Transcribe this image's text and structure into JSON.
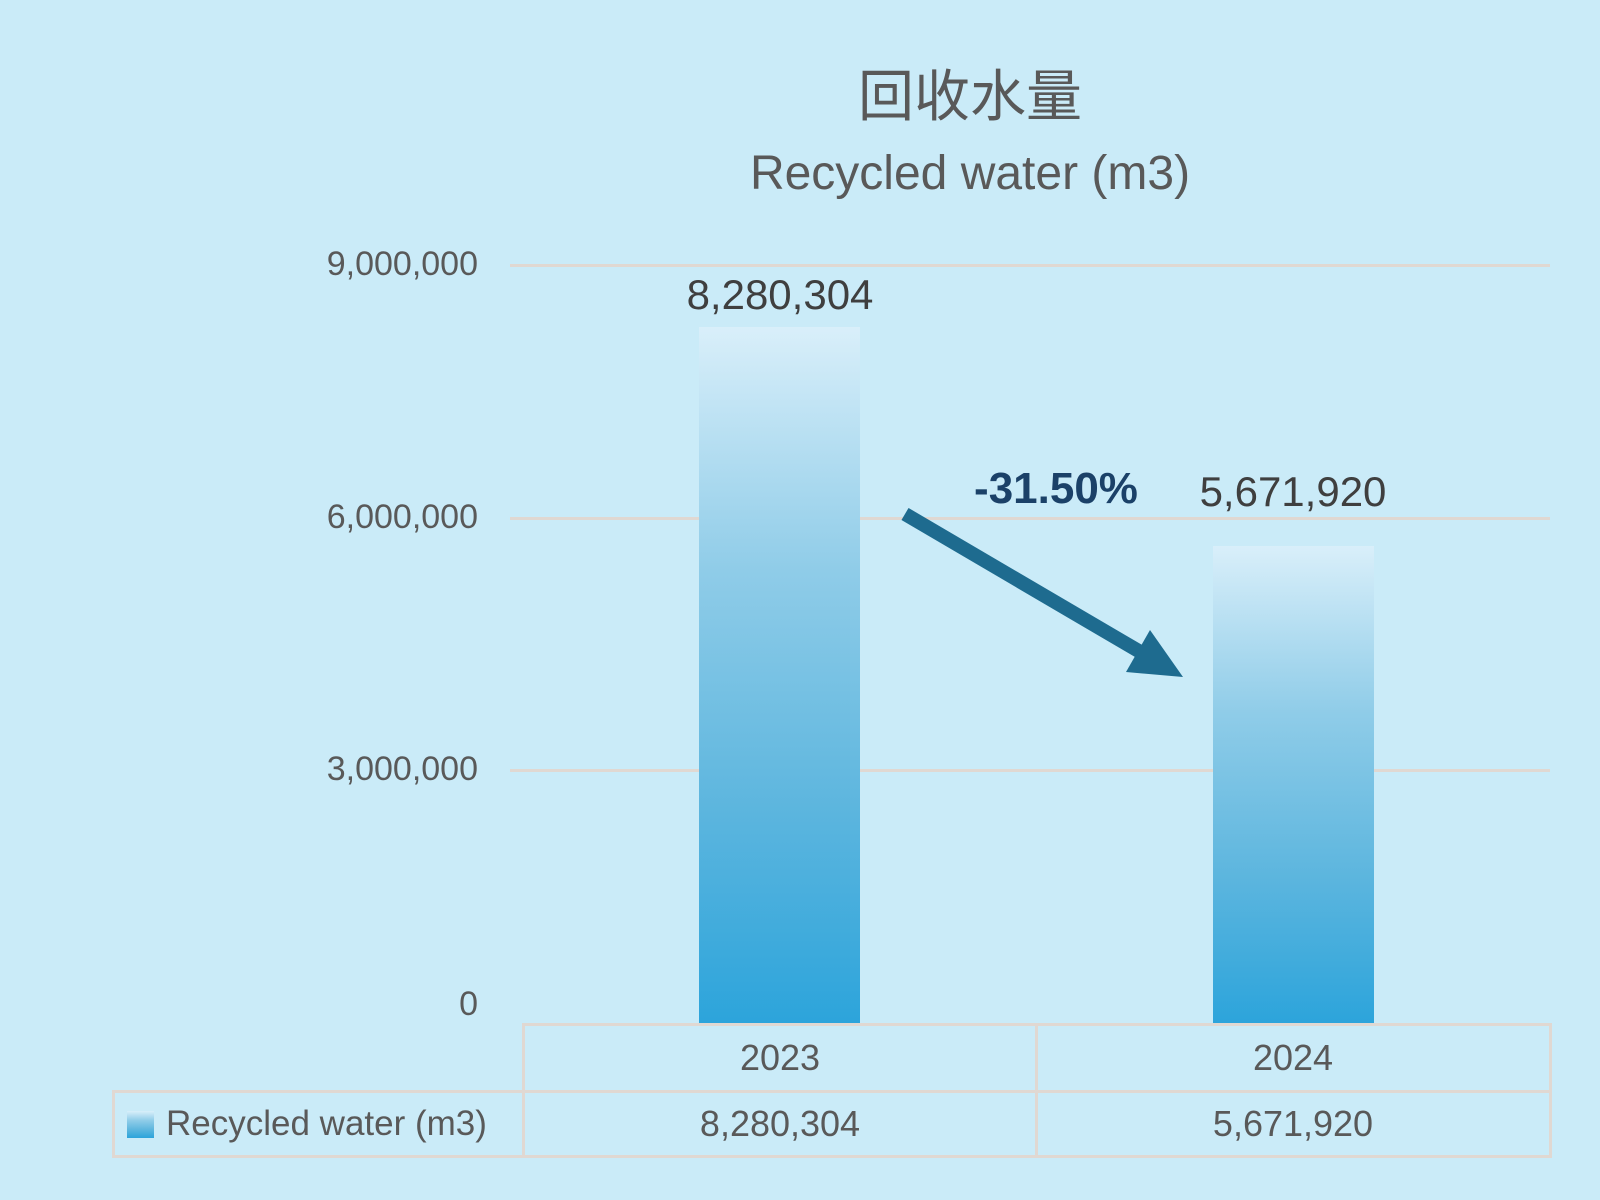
{
  "chart_data": {
    "type": "bar",
    "title": "回收水量",
    "subtitle": "Recycled water (m3)",
    "categories": [
      "2023",
      "2024"
    ],
    "series": [
      {
        "name": "Recycled water (m3)",
        "values": [
          8280304,
          5671920
        ]
      }
    ],
    "value_labels": [
      "8,280,304",
      "5,671,920"
    ],
    "ylim": [
      0,
      9000000
    ],
    "yticks": [
      {
        "value": 9000000,
        "label": "9,000,000"
      },
      {
        "value": 6000000,
        "label": "6,000,000"
      },
      {
        "value": 3000000,
        "label": "3,000,000"
      },
      {
        "value": 0,
        "label": "0"
      }
    ],
    "grid": true,
    "legend_position": "bottom-table",
    "annotation": {
      "text": "-31.50%",
      "kind": "percent-change-arrow"
    }
  },
  "table": {
    "header_row": [
      "2023",
      "2024"
    ],
    "legend_label": "Recycled water (m3)",
    "values_row": [
      "8,280,304",
      "5,671,920"
    ]
  },
  "colors": {
    "background": "#CAEBF8",
    "text_gray": "#595959",
    "data_label": "#3F3F3F",
    "annotation_navy": "#1B4168",
    "arrow_teal": "#1E6B8F",
    "gridline": "#E0D8D2",
    "bar_top": "#D9EFFA",
    "bar_mid_light": "#8FCCE8",
    "bar_mid_dark": "#5BB5DE",
    "bar_bottom": "#2CA4DB"
  }
}
